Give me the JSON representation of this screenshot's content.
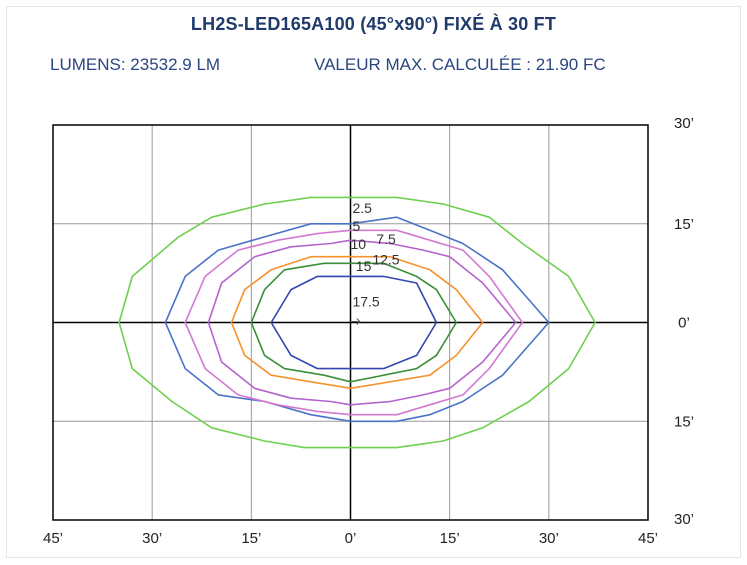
{
  "title": "LH2S-LED165A100 (45°x90°) FIXÉ À 30 FT",
  "lumens_text": "LUMENS: 23532.9 LM",
  "max_value_text": "VALEUR MAX. CALCULÉE : 21.90 FC",
  "colors": {
    "title": "#1f3a6b",
    "subtitle": "#2a4680",
    "grid": "#9a9a9a",
    "axis": "#000000"
  },
  "chart_data": {
    "type": "contour",
    "title": "LH2S-LED165A100 (45°x90°) FIXÉ À 30 FT",
    "xlim": [
      -45,
      45
    ],
    "ylim": [
      -30,
      30
    ],
    "x_tick_values": [
      -45,
      -30,
      -15,
      0,
      15,
      30,
      45
    ],
    "x_tick_labels": [
      "45’",
      "30’",
      "15’",
      "0’",
      "15’",
      "30’",
      "45’"
    ],
    "y_tick_values": [
      30,
      15,
      0,
      -15,
      -30
    ],
    "y_tick_labels": [
      "30’",
      "15’",
      "0’",
      "15’",
      "30’"
    ],
    "grid": true,
    "unit": "FC",
    "contours": [
      {
        "level": "2.5",
        "color": "#6fcf4f",
        "points": [
          [
            -35,
            0
          ],
          [
            -33,
            7
          ],
          [
            -26,
            13
          ],
          [
            -21,
            16
          ],
          [
            -13,
            18
          ],
          [
            -6,
            19
          ],
          [
            0,
            19
          ],
          [
            7,
            19
          ],
          [
            14,
            18
          ],
          [
            21,
            16
          ],
          [
            26,
            12
          ],
          [
            33,
            7
          ],
          [
            37,
            0
          ],
          [
            33,
            -7
          ],
          [
            27,
            -12
          ],
          [
            20,
            -16
          ],
          [
            14,
            -18
          ],
          [
            7,
            -19
          ],
          [
            0,
            -19
          ],
          [
            -7,
            -19
          ],
          [
            -13,
            -18
          ],
          [
            -21,
            -16
          ],
          [
            -27,
            -12
          ],
          [
            -33,
            -7
          ]
        ]
      },
      {
        "level": "5",
        "color": "#4a73c8",
        "points": [
          [
            -28,
            0
          ],
          [
            -25,
            7
          ],
          [
            -20,
            11
          ],
          [
            -13,
            13
          ],
          [
            -6,
            15
          ],
          [
            0,
            15
          ],
          [
            7,
            16
          ],
          [
            12,
            14
          ],
          [
            17,
            12
          ],
          [
            23,
            8
          ],
          [
            30,
            0
          ],
          [
            23,
            -8
          ],
          [
            17,
            -12
          ],
          [
            12,
            -14
          ],
          [
            7,
            -15
          ],
          [
            0,
            -15
          ],
          [
            -6,
            -14
          ],
          [
            -13,
            -12
          ],
          [
            -20,
            -11
          ],
          [
            -25,
            -7
          ]
        ]
      },
      {
        "level": "10",
        "color": "#b464cc",
        "points": [
          [
            -21.5,
            0
          ],
          [
            -19.5,
            6
          ],
          [
            -14.5,
            10
          ],
          [
            -9,
            11.5
          ],
          [
            -3,
            12
          ],
          [
            0,
            12.5
          ],
          [
            6,
            12
          ],
          [
            11,
            11
          ],
          [
            15,
            10
          ],
          [
            20,
            6
          ],
          [
            25,
            0
          ],
          [
            20,
            -6
          ],
          [
            15,
            -10
          ],
          [
            11,
            -11
          ],
          [
            6,
            -12
          ],
          [
            0,
            -12.5
          ],
          [
            -3,
            -12
          ],
          [
            -9,
            -11.5
          ],
          [
            -14.5,
            -10
          ],
          [
            -19.5,
            -6
          ]
        ]
      },
      {
        "level": "7.5",
        "color": "#d27ad2",
        "points": [
          [
            -25,
            0
          ],
          [
            -22,
            7
          ],
          [
            -17,
            11
          ],
          [
            -11,
            12.5
          ],
          [
            -5,
            13.5
          ],
          [
            0,
            14
          ],
          [
            7,
            14
          ],
          [
            12,
            12.5
          ],
          [
            17,
            11
          ],
          [
            21,
            7
          ],
          [
            26,
            0
          ],
          [
            21,
            -7
          ],
          [
            17,
            -11
          ],
          [
            12,
            -12.5
          ],
          [
            7,
            -14
          ],
          [
            0,
            -14
          ],
          [
            -5,
            -13.5
          ],
          [
            -11,
            -12.5
          ],
          [
            -17,
            -11
          ],
          [
            -22,
            -7
          ]
        ]
      },
      {
        "level": "12.5",
        "color": "#f5922e",
        "points": [
          [
            -18,
            0
          ],
          [
            -16,
            5
          ],
          [
            -12,
            8
          ],
          [
            -6,
            10
          ],
          [
            0,
            10
          ],
          [
            6,
            10
          ],
          [
            12,
            8
          ],
          [
            16,
            5
          ],
          [
            20,
            0
          ],
          [
            16,
            -5
          ],
          [
            12,
            -8
          ],
          [
            6,
            -9
          ],
          [
            0,
            -10
          ],
          [
            -6,
            -9
          ],
          [
            -12,
            -8
          ],
          [
            -16,
            -5
          ]
        ]
      },
      {
        "level": "15",
        "color": "#3a8f3a",
        "points": [
          [
            -15,
            0
          ],
          [
            -13,
            5
          ],
          [
            -10,
            8
          ],
          [
            -4,
            9
          ],
          [
            0,
            9
          ],
          [
            5,
            9
          ],
          [
            10,
            7
          ],
          [
            13,
            5
          ],
          [
            16,
            0
          ],
          [
            13,
            -5
          ],
          [
            10,
            -7
          ],
          [
            5,
            -8
          ],
          [
            0,
            -9
          ],
          [
            -4,
            -8
          ],
          [
            -10,
            -7
          ],
          [
            -13,
            -5
          ]
        ]
      },
      {
        "level": "17.5",
        "color": "#3447b0",
        "points": [
          [
            -12,
            0
          ],
          [
            -9,
            5
          ],
          [
            -5,
            7
          ],
          [
            0,
            7
          ],
          [
            5,
            7
          ],
          [
            10,
            6
          ],
          [
            13,
            0
          ],
          [
            10,
            -5
          ],
          [
            5,
            -7
          ],
          [
            0,
            -7
          ],
          [
            -5,
            -7
          ],
          [
            -9,
            -5
          ]
        ]
      }
    ],
    "labels": [
      {
        "text": "2.5",
        "x": 0.3,
        "y": 16.6
      },
      {
        "text": "5",
        "x": 0.3,
        "y": 13.9
      },
      {
        "text": "7.5",
        "x": 3.9,
        "y": 11.9
      },
      {
        "text": "10",
        "x": 0.0,
        "y": 11.2
      },
      {
        "text": "12.5",
        "x": 3.3,
        "y": 8.8
      },
      {
        "text": "15",
        "x": 0.8,
        "y": 7.8
      },
      {
        "text": "17.5",
        "x": 0.3,
        "y": 2.4
      }
    ]
  }
}
